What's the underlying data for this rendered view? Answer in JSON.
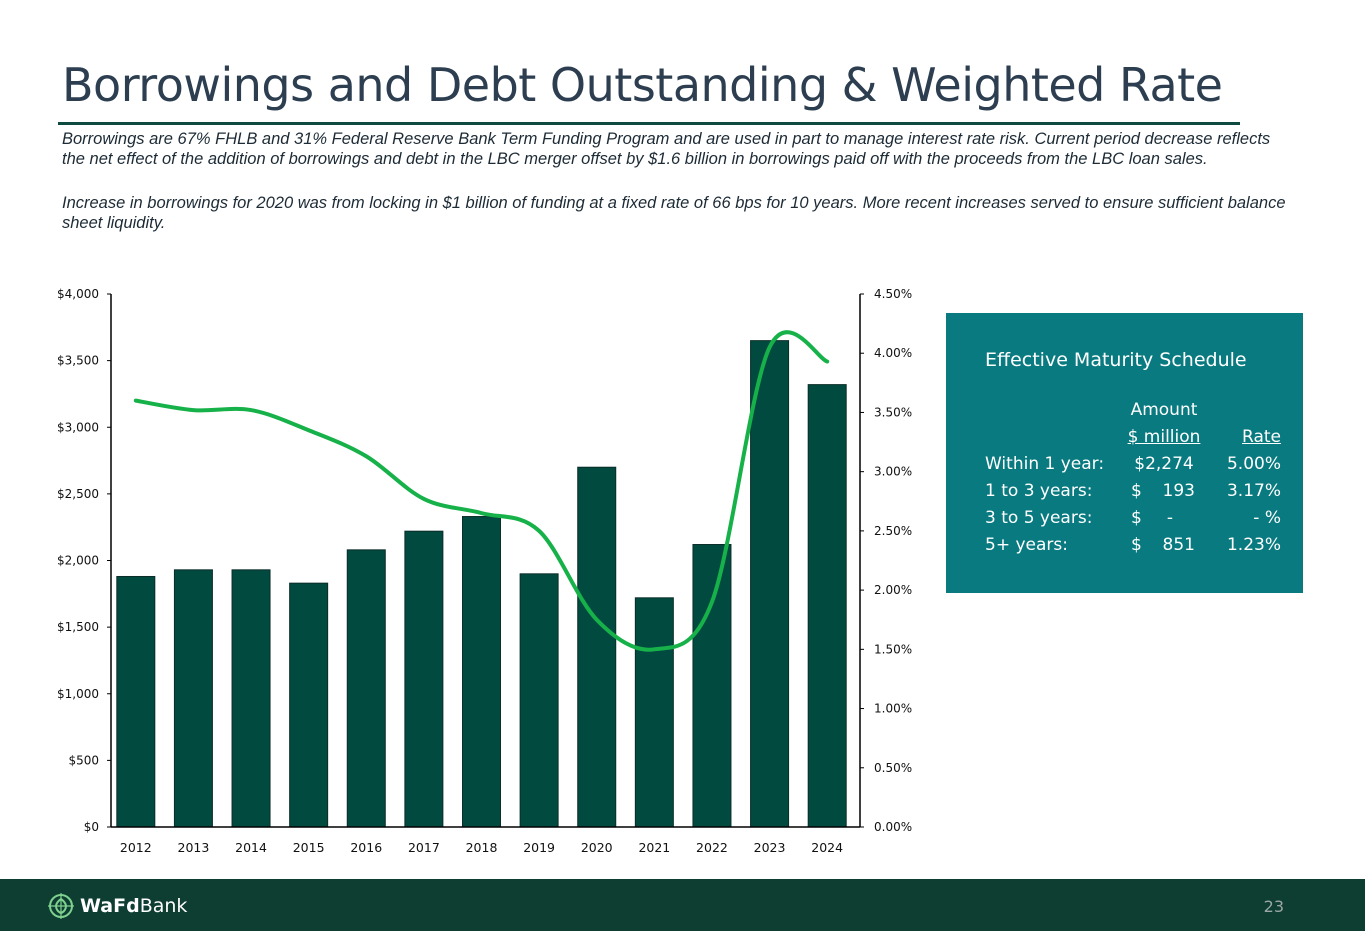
{
  "title": "Borrowings and Debt Outstanding & Weighted Rate",
  "subtitle1": "Borrowings are 67% FHLB and 31% Federal Reserve Bank Term Funding Program and are used in part to manage interest rate risk. Current period decrease reflects the net effect of the addition of borrowings and debt in the LBC merger offset by $1.6 billion in borrowings paid off with the proceeds from the LBC loan sales.",
  "subtitle2": "Increase in borrowings for 2020 was from locking in $1 billion of funding at a fixed rate of 66 bps for 10 years. More recent increases served to ensure sufficient balance sheet liquidity.",
  "colors": {
    "bar": "#004a40",
    "line": "#17b14a",
    "panel": "#087a80",
    "footer": "#0e3d32",
    "title": "#2c3e50"
  },
  "chart_data": {
    "type": "bar",
    "categories": [
      "2012",
      "2013",
      "2014",
      "2015",
      "2016",
      "2017",
      "2018",
      "2019",
      "2020",
      "2021",
      "2022",
      "2023",
      "2024"
    ],
    "series": [
      {
        "name": "Borrowings and Debt Outstanding ($ million)",
        "type": "bar",
        "axis": "left",
        "values": [
          1880,
          1930,
          1930,
          1830,
          2080,
          2220,
          2330,
          1900,
          2700,
          1720,
          2120,
          3650,
          3320
        ]
      },
      {
        "name": "Weighted Rate (%)",
        "type": "line",
        "axis": "right",
        "values": [
          3.6,
          3.52,
          3.52,
          3.35,
          3.13,
          2.77,
          2.65,
          2.5,
          1.75,
          1.5,
          1.9,
          4.05,
          3.93
        ]
      }
    ],
    "y_left": {
      "min": 0,
      "max": 4000,
      "ticks": [
        0,
        500,
        1000,
        1500,
        2000,
        2500,
        3000,
        3500,
        4000
      ],
      "tick_labels": [
        "$0",
        "$500",
        "$1,000",
        "$1,500",
        "$2,000",
        "$2,500",
        "$3,000",
        "$3,500",
        "$4,000"
      ]
    },
    "y_right": {
      "min": 0,
      "max": 4.5,
      "ticks": [
        0,
        0.5,
        1,
        1.5,
        2,
        2.5,
        3,
        3.5,
        4,
        4.5
      ],
      "tick_labels": [
        "0.00%",
        "0.50%",
        "1.00%",
        "1.50%",
        "2.00%",
        "2.50%",
        "3.00%",
        "3.50%",
        "4.00%",
        "4.50%"
      ]
    },
    "grid": false,
    "legend": "none"
  },
  "maturity": {
    "title": "Effective Maturity Schedule",
    "header_amount_1": "Amount",
    "header_amount_2": "$ million",
    "header_rate": "Rate",
    "rows": [
      {
        "label": "Within 1 year:",
        "amount_sign": "",
        "amount": "$2,274",
        "rate": "5.00%"
      },
      {
        "label": "1 to 3 years:",
        "amount_sign": "$",
        "amount": "193",
        "rate": "3.17%"
      },
      {
        "label": "3 to 5 years:",
        "amount_sign": "$",
        "amount": "-",
        "rate": "- %"
      },
      {
        "label": "5+ years:",
        "amount_sign": "$",
        "amount": "851",
        "rate": "1.23%"
      }
    ]
  },
  "footer": {
    "logo_bold": "WaFd",
    "logo_rest": "Bank",
    "logo_icon": "wafd-logo-icon",
    "page_number": "23"
  }
}
